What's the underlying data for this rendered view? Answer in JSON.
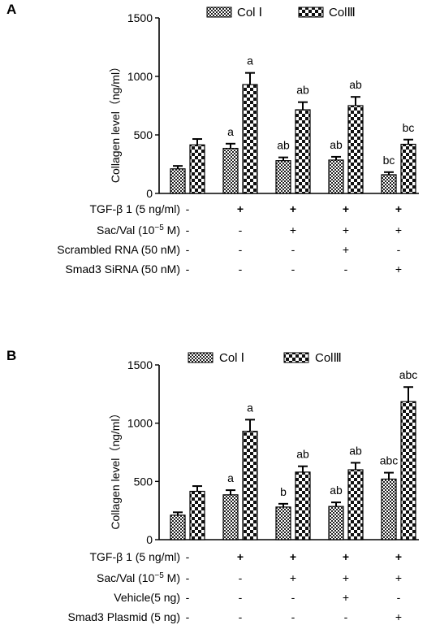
{
  "chart_data": [
    {
      "type": "bar",
      "panel_label": "A",
      "ylabel": "Collagen level（ng/ml）",
      "ylim": [
        0,
        1500
      ],
      "yticks": [
        "0",
        "500",
        "1000",
        "1500"
      ],
      "legend_position": "top",
      "series": [
        {
          "name": "Col Ⅰ",
          "pattern": "fine-check",
          "values": [
            210,
            385,
            280,
            285,
            160
          ],
          "errors": [
            25,
            40,
            28,
            28,
            22
          ],
          "labels": [
            "",
            "a",
            "ab",
            "ab",
            "bc"
          ]
        },
        {
          "name": "ColⅢ",
          "pattern": "coarse-check",
          "values": [
            415,
            930,
            715,
            750,
            420
          ],
          "errors": [
            50,
            100,
            65,
            75,
            40
          ],
          "labels": [
            "",
            "a",
            "ab",
            "ab",
            "bc"
          ]
        }
      ],
      "treatments": [
        {
          "label": "TGF-β 1 (5 ng/ml)",
          "signs": [
            "-",
            "+",
            "+",
            "+",
            "+"
          ]
        },
        {
          "label": "Sac/Val (10",
          "sup": "−5",
          "label_end": " M)",
          "signs": [
            "-",
            "-",
            "+",
            "+",
            "+"
          ]
        },
        {
          "label": "Scrambled RNA (50 nM)",
          "signs": [
            "-",
            "-",
            "-",
            "+",
            "-"
          ]
        },
        {
          "label": "Smad3 SiRNA (50 nM)",
          "signs": [
            "-",
            "-",
            "-",
            "-",
            "+"
          ]
        }
      ]
    },
    {
      "type": "bar",
      "panel_label": "B",
      "ylabel": "Collagen level（ng/ml）",
      "ylim": [
        0,
        1500
      ],
      "yticks": [
        "0",
        "500",
        "1000",
        "1500"
      ],
      "legend_position": "top",
      "series": [
        {
          "name": "Col Ⅰ",
          "pattern": "fine-check",
          "values": [
            210,
            385,
            280,
            285,
            520
          ],
          "errors": [
            25,
            40,
            28,
            35,
            55
          ],
          "labels": [
            "",
            "a",
            "b",
            "ab",
            "abc"
          ]
        },
        {
          "name": "ColⅢ",
          "pattern": "coarse-check",
          "values": [
            415,
            930,
            580,
            600,
            1185
          ],
          "errors": [
            45,
            100,
            50,
            60,
            125
          ],
          "labels": [
            "",
            "a",
            "ab",
            "ab",
            "abc"
          ]
        }
      ],
      "treatments": [
        {
          "label": "TGF-β 1 (5 ng/ml)",
          "signs": [
            "-",
            "+",
            "+",
            "+",
            "+"
          ]
        },
        {
          "label": "Sac/Val (10",
          "sup": "−5",
          "label_end": " M)",
          "signs": [
            "-",
            "-",
            "+",
            "+",
            "+"
          ]
        },
        {
          "label": "Vehicle(5 ng)",
          "signs": [
            "-",
            "-",
            "-",
            "+",
            "-"
          ]
        },
        {
          "label": "Smad3 Plasmid (5 ng)",
          "signs": [
            "-",
            "-",
            "-",
            "-",
            "+"
          ]
        }
      ]
    }
  ]
}
